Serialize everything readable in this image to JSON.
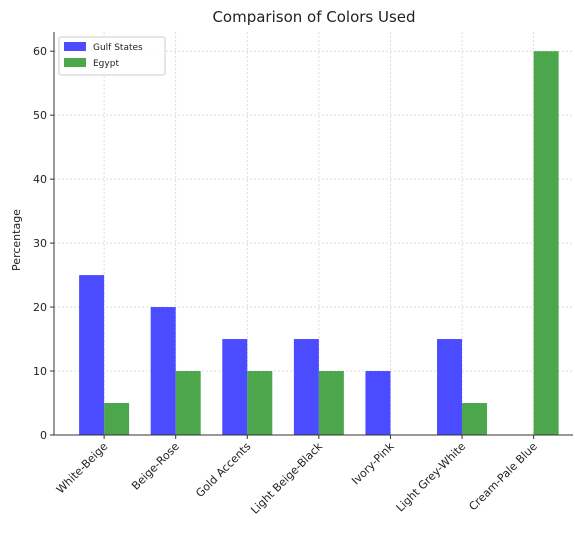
{
  "chart_data": {
    "type": "bar",
    "title": "Comparison of Colors Used",
    "xlabel": "",
    "ylabel": "Percentage",
    "categories": [
      "White-Beige",
      "Beige-Rose",
      "Gold Accents",
      "Light Beige-Black",
      "Ivory-Pink",
      "Light Grey-White",
      "Cream-Pale Blue"
    ],
    "series": [
      {
        "name": "Gulf States",
        "color": "#4b4bff",
        "values": [
          25,
          20,
          15,
          15,
          10,
          15,
          0
        ]
      },
      {
        "name": "Egypt",
        "color": "#4ca64c",
        "values": [
          5,
          10,
          10,
          10,
          0,
          5,
          60
        ]
      }
    ],
    "ylim": [
      0,
      63
    ],
    "yticks": [
      0,
      10,
      20,
      30,
      40,
      50,
      60
    ],
    "grid": true,
    "legend_position": "top-left"
  }
}
